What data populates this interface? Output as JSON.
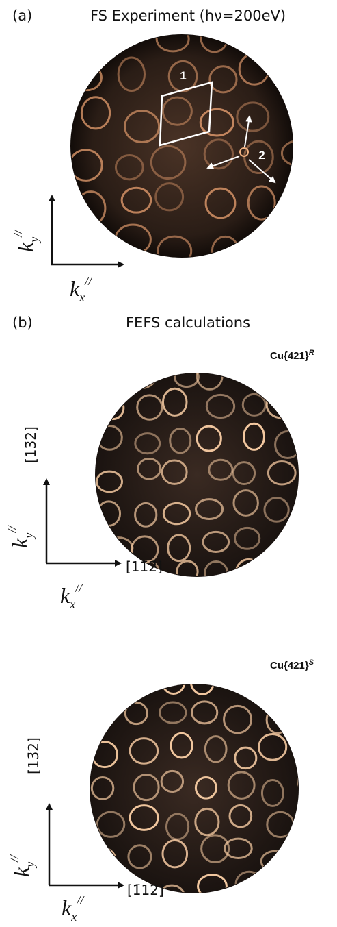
{
  "panel_a": {
    "label": "(a)",
    "title": "FS Experiment (hν=200eV)",
    "marker_1": "1",
    "marker_2": "2",
    "ky": {
      "base": "k",
      "sub": "y",
      "sup": "//"
    },
    "kx": {
      "base": "k",
      "sub": "x",
      "sup": "//"
    }
  },
  "panel_b": {
    "label": "(b)",
    "title": "FEFS calculations",
    "top": {
      "name": {
        "base": "Cu{421}",
        "sup": "R"
      },
      "y_direction": "[13̄2]",
      "x_direction": "[11̄2̄]",
      "ky": {
        "base": "k",
        "sub": "y",
        "sup": "//"
      },
      "kx": {
        "base": "k",
        "sub": "x",
        "sup": "//"
      }
    },
    "bottom": {
      "name": {
        "base": "Cu{421}",
        "sup": "S"
      },
      "y_direction": "[13̄2]",
      "x_direction": "[1̄12]",
      "ky": {
        "base": "k",
        "sub": "y",
        "sup": "//"
      },
      "kx": {
        "base": "k",
        "sub": "x",
        "sup": "//"
      }
    }
  }
}
